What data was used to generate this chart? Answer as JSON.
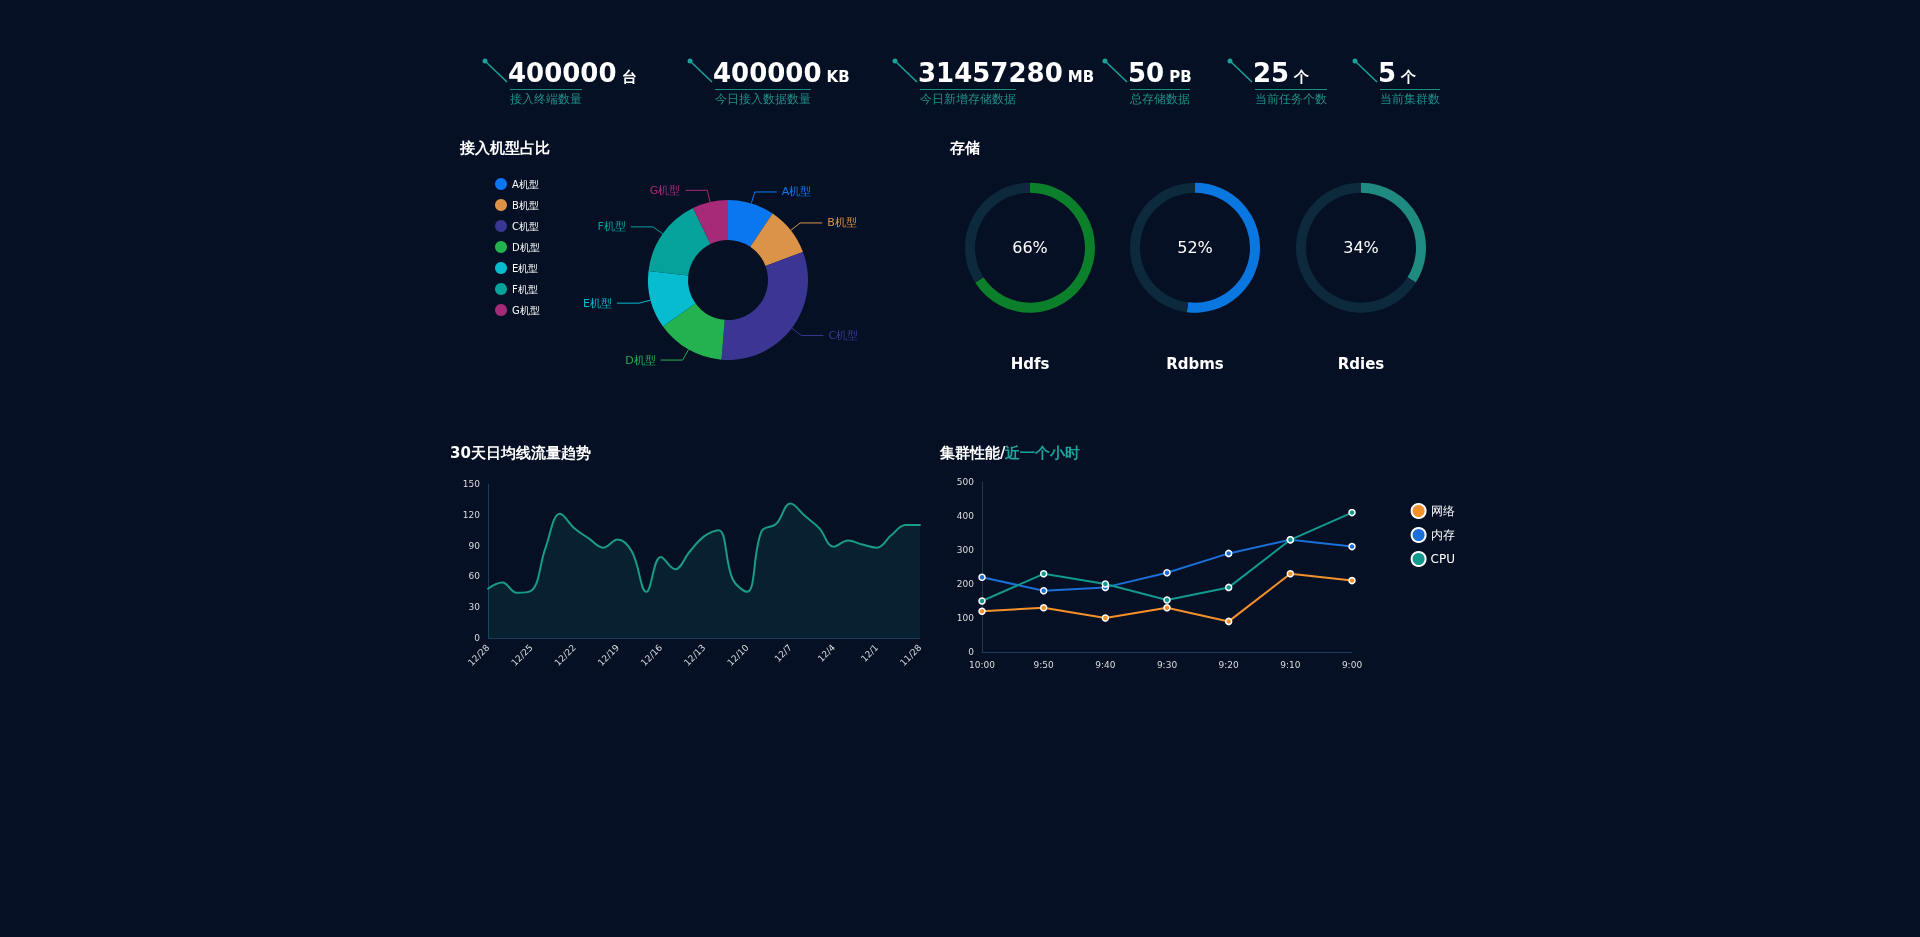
{
  "chart_data": [
    {
      "type": "other",
      "annotations": [
        "400000 台",
        "接入终端数量",
        "400000 KB",
        "今日接入数据数量",
        "31457280 MB",
        "今日新增存储数据",
        "50 PB",
        "总存储数据",
        "25 个",
        "当前任务个数",
        "5 个",
        "当前集群数"
      ]
    },
    {
      "type": "donut",
      "title": "接入机型占比",
      "categories": [
        "A机型",
        "B机型",
        "C机型",
        "D机型",
        "E机型",
        "F机型",
        "G机型"
      ],
      "values": [
        9.4,
        9.9,
        32,
        13.8,
        11.7,
        16,
        7.2
      ],
      "colors": [
        "#0a77f0",
        "#db9447",
        "#3b3693",
        "#24b14f",
        "#06bcce",
        "#04a29a",
        "#a72a78"
      ],
      "legend": "left"
    },
    {
      "type": "donut",
      "title": "存储",
      "xlabel": "Hdfs",
      "categories": [
        null,
        null
      ],
      "values": [
        66,
        34
      ],
      "annotations": [
        "66%"
      ],
      "colors": [
        "#0b7f2a",
        "#0c2a3b"
      ]
    },
    {
      "type": "donut",
      "xlabel": "Rdbms",
      "categories": [
        null,
        null
      ],
      "values": [
        52,
        48
      ],
      "annotations": [
        "52%"
      ],
      "colors": [
        "#0a77e0",
        "#0c2a3b"
      ]
    },
    {
      "type": "donut",
      "xlabel": "Rdies",
      "categories": [
        null,
        null
      ],
      "values": [
        34,
        66
      ],
      "annotations": [
        "34%"
      ],
      "colors": [
        "#1f8a80",
        "#0c2a3b"
      ]
    },
    {
      "type": "area",
      "title": "30天日均线流量趋势",
      "categories": [
        "12/28",
        null,
        null,
        "12/25",
        null,
        null,
        "12/22",
        null,
        null,
        "12/19",
        null,
        null,
        "12/16",
        null,
        null,
        "12/13",
        null,
        null,
        "12/10",
        null,
        null,
        "12/7",
        null,
        null,
        "12/4",
        null,
        null,
        "12/1",
        null,
        null,
        "11/28"
      ],
      "series": [
        {
          "color": "#1a9a8a",
          "values": [
            48,
            54,
            44,
            46,
            88,
            121,
            107,
            97,
            88,
            96,
            84,
            45,
            79,
            67,
            84,
            99,
            105,
            57,
            45,
            104,
            111,
            131,
            119,
            107,
            89,
            95,
            91,
            88,
            100,
            110,
            110
          ]
        }
      ],
      "ylim": [
        0,
        150
      ],
      "yticks": [
        0,
        30,
        60,
        90,
        120,
        150
      ],
      "marker": "none"
    },
    {
      "type": "line",
      "title": "集群性能/",
      "subtitle": "近一个小时",
      "categories": [
        "10:00",
        "9:50",
        "9:40",
        "9:30",
        "9:20",
        "9:10",
        "9:00"
      ],
      "series": [
        {
          "name": "网络",
          "color": "#f5912b",
          "values": [
            120,
            130,
            100,
            130,
            90,
            230,
            210
          ]
        },
        {
          "name": "内存",
          "color": "#1a6fd8",
          "values": [
            220,
            180,
            190,
            233,
            290,
            330,
            310
          ]
        },
        {
          "name": "CPU",
          "color": "#11998e",
          "values": [
            150,
            230,
            200,
            153,
            190,
            330,
            410
          ]
        }
      ],
      "ylim": [
        0,
        500
      ],
      "yticks": [
        0,
        100,
        200,
        300,
        400,
        500
      ],
      "marker": "circle",
      "legend": "right"
    }
  ]
}
